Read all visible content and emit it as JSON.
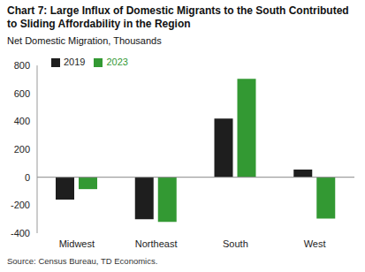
{
  "chart_data": {
    "type": "bar",
    "title": "Chart 7: Large Influx of Domestic Migrants to the South Contributed to Sliding Affordability in the Region",
    "subtitle": "Net Domestic Migration, Thousands",
    "source": "Source: Census Bureau, TD Economics.",
    "categories": [
      "Midwest",
      "Northeast",
      "South",
      "West"
    ],
    "series": [
      {
        "name": "2019",
        "color": "#1e1e1e",
        "values": [
          -160,
          -300,
          420,
          55
        ]
      },
      {
        "name": "2023",
        "color": "#339933",
        "values": [
          -85,
          -320,
          705,
          -295
        ]
      }
    ],
    "ylim": [
      -400,
      800
    ],
    "yticks": [
      -400,
      -200,
      0,
      200,
      400,
      600,
      800
    ],
    "grid": false,
    "legend": "top-left"
  }
}
